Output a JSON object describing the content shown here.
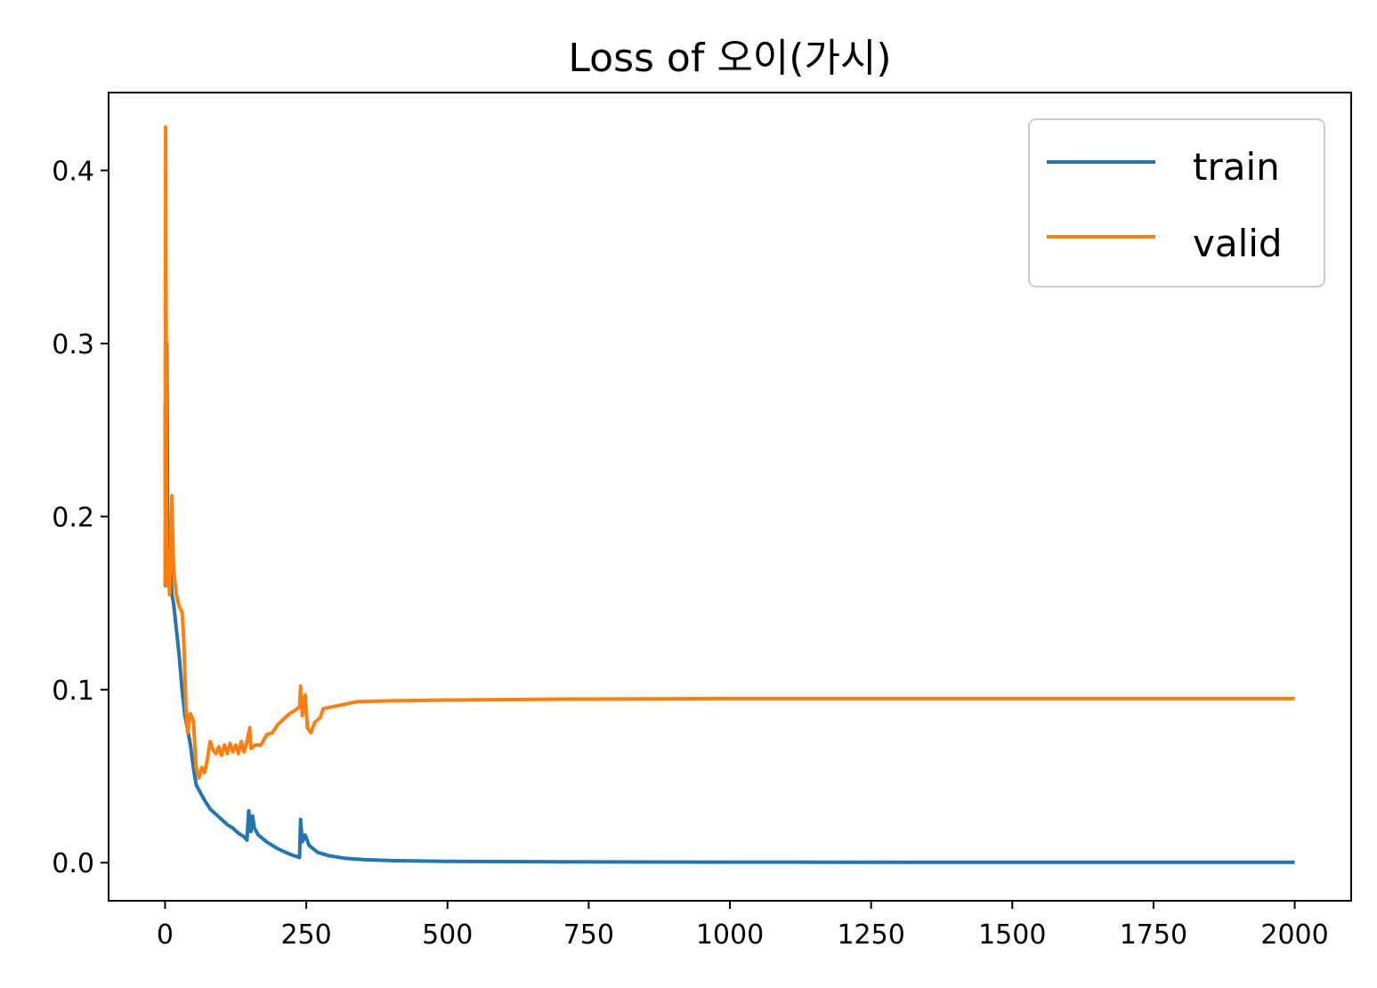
{
  "chart_data": {
    "type": "line",
    "title": "Loss of 오이(가시)",
    "xlabel": "",
    "ylabel": "",
    "xlim": [
      -100,
      2100
    ],
    "ylim": [
      -0.022,
      0.445
    ],
    "xticks": [
      0,
      250,
      500,
      750,
      1000,
      1250,
      1500,
      1750,
      2000
    ],
    "xtick_labels": [
      "0",
      "250",
      "500",
      "750",
      "1000",
      "1250",
      "1500",
      "1750",
      "2000"
    ],
    "yticks": [
      0.0,
      0.1,
      0.2,
      0.3,
      0.4
    ],
    "ytick_labels": [
      "0.0",
      "0.1",
      "0.2",
      "0.3",
      "0.4"
    ],
    "grid": false,
    "legend": "upper-right",
    "series": [
      {
        "name": "train",
        "color": "#1f77b4",
        "points": [
          [
            0,
            0.265
          ],
          [
            1,
            0.16
          ],
          [
            3,
            0.3
          ],
          [
            5,
            0.165
          ],
          [
            8,
            0.18
          ],
          [
            12,
            0.155
          ],
          [
            15,
            0.15
          ],
          [
            20,
            0.135
          ],
          [
            25,
            0.12
          ],
          [
            30,
            0.1
          ],
          [
            35,
            0.085
          ],
          [
            40,
            0.077
          ],
          [
            45,
            0.068
          ],
          [
            50,
            0.055
          ],
          [
            55,
            0.045
          ],
          [
            60,
            0.042
          ],
          [
            70,
            0.036
          ],
          [
            80,
            0.031
          ],
          [
            90,
            0.028
          ],
          [
            100,
            0.025
          ],
          [
            110,
            0.022
          ],
          [
            120,
            0.02
          ],
          [
            130,
            0.017
          ],
          [
            140,
            0.015
          ],
          [
            145,
            0.013
          ],
          [
            148,
            0.03
          ],
          [
            150,
            0.025
          ],
          [
            152,
            0.018
          ],
          [
            155,
            0.027
          ],
          [
            158,
            0.02
          ],
          [
            165,
            0.016
          ],
          [
            180,
            0.012
          ],
          [
            200,
            0.008
          ],
          [
            220,
            0.005
          ],
          [
            238,
            0.003
          ],
          [
            240,
            0.025
          ],
          [
            243,
            0.012
          ],
          [
            248,
            0.016
          ],
          [
            255,
            0.01
          ],
          [
            270,
            0.006
          ],
          [
            290,
            0.004
          ],
          [
            320,
            0.0025
          ],
          [
            350,
            0.0018
          ],
          [
            400,
            0.0012
          ],
          [
            500,
            0.0008
          ],
          [
            700,
            0.0005
          ],
          [
            1000,
            0.0003
          ],
          [
            1500,
            0.0002
          ],
          [
            2000,
            0.0002
          ]
        ]
      },
      {
        "name": "valid",
        "color": "#ff7f0e",
        "points": [
          [
            0,
            0.16
          ],
          [
            1,
            0.425
          ],
          [
            3,
            0.16
          ],
          [
            6,
            0.18
          ],
          [
            8,
            0.155
          ],
          [
            12,
            0.212
          ],
          [
            15,
            0.17
          ],
          [
            20,
            0.155
          ],
          [
            25,
            0.148
          ],
          [
            30,
            0.145
          ],
          [
            33,
            0.13
          ],
          [
            37,
            0.09
          ],
          [
            40,
            0.075
          ],
          [
            45,
            0.086
          ],
          [
            50,
            0.082
          ],
          [
            55,
            0.055
          ],
          [
            60,
            0.049
          ],
          [
            65,
            0.055
          ],
          [
            70,
            0.052
          ],
          [
            75,
            0.06
          ],
          [
            80,
            0.07
          ],
          [
            85,
            0.065
          ],
          [
            90,
            0.063
          ],
          [
            95,
            0.067
          ],
          [
            100,
            0.062
          ],
          [
            105,
            0.068
          ],
          [
            110,
            0.063
          ],
          [
            115,
            0.069
          ],
          [
            120,
            0.064
          ],
          [
            125,
            0.068
          ],
          [
            130,
            0.063
          ],
          [
            135,
            0.07
          ],
          [
            140,
            0.064
          ],
          [
            145,
            0.07
          ],
          [
            150,
            0.078
          ],
          [
            152,
            0.066
          ],
          [
            160,
            0.068
          ],
          [
            170,
            0.068
          ],
          [
            180,
            0.074
          ],
          [
            190,
            0.075
          ],
          [
            200,
            0.08
          ],
          [
            210,
            0.083
          ],
          [
            220,
            0.086
          ],
          [
            230,
            0.088
          ],
          [
            238,
            0.09
          ],
          [
            240,
            0.102
          ],
          [
            243,
            0.085
          ],
          [
            248,
            0.097
          ],
          [
            252,
            0.078
          ],
          [
            258,
            0.075
          ],
          [
            265,
            0.081
          ],
          [
            275,
            0.084
          ],
          [
            280,
            0.089
          ],
          [
            295,
            0.09
          ],
          [
            310,
            0.091
          ],
          [
            325,
            0.092
          ],
          [
            340,
            0.093
          ],
          [
            400,
            0.0935
          ],
          [
            500,
            0.094
          ],
          [
            700,
            0.0945
          ],
          [
            1000,
            0.0948
          ],
          [
            1500,
            0.0948
          ],
          [
            2000,
            0.0948
          ]
        ]
      }
    ]
  }
}
